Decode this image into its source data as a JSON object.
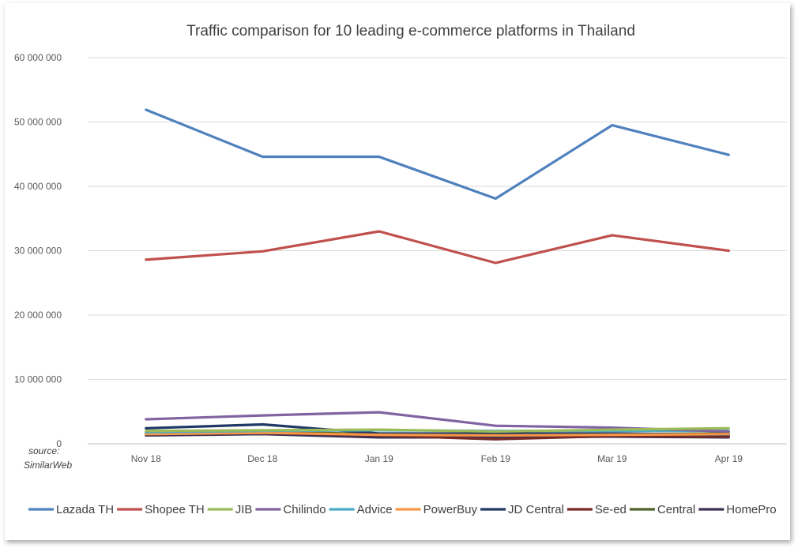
{
  "chart_data": {
    "type": "line",
    "title": "Traffic comparison for 10 leading e-commerce platforms in Thailand",
    "xlabel": "",
    "ylabel": "",
    "categories": [
      "Nov 18",
      "Dec 18",
      "Jan 19",
      "Feb 19",
      "Mar 19",
      "Apr 19"
    ],
    "ylim": [
      0,
      60000000
    ],
    "yticks": [
      0,
      10000000,
      20000000,
      30000000,
      40000000,
      50000000,
      60000000
    ],
    "ytick_labels": [
      "0",
      "10 000 000",
      "20 000 000",
      "30 000 000",
      "40 000 000",
      "50 000 000",
      "60 000 000"
    ],
    "grid": true,
    "legend_position": "bottom",
    "series": [
      {
        "name": "Lazada TH",
        "color": "#4f81bd",
        "values": [
          51900000,
          44600000,
          44600000,
          38100000,
          49500000,
          44900000
        ]
      },
      {
        "name": "Shopee TH",
        "color": "#c0504d",
        "values": [
          28600000,
          29900000,
          33000000,
          28100000,
          32400000,
          30000000
        ]
      },
      {
        "name": "JIB",
        "color": "#9bbb59",
        "values": [
          2000000,
          2100000,
          2200000,
          1900000,
          2200000,
          2400000
        ]
      },
      {
        "name": "Chilindo",
        "color": "#8064a2",
        "values": [
          3800000,
          4400000,
          4900000,
          2800000,
          2500000,
          1900000
        ]
      },
      {
        "name": "Advice",
        "color": "#4bacc6",
        "values": [
          1800000,
          2000000,
          2100000,
          2000000,
          2000000,
          2000000
        ]
      },
      {
        "name": "PowerBuy",
        "color": "#f79646",
        "values": [
          1500000,
          1700000,
          1400000,
          1300000,
          1400000,
          1500000
        ]
      },
      {
        "name": "JD Central",
        "color": "#1f3864",
        "values": [
          2400000,
          3000000,
          1600000,
          1600000,
          1600000,
          1400000
        ]
      },
      {
        "name": "Se-ed",
        "color": "#772c2a",
        "values": [
          1600000,
          1700000,
          1300000,
          700000,
          1200000,
          1100000
        ]
      },
      {
        "name": "Central",
        "color": "#4f6228",
        "values": [
          1800000,
          1900000,
          1500000,
          1400000,
          1500000,
          1600000
        ]
      },
      {
        "name": "HomePro",
        "color": "#3f3151",
        "values": [
          1300000,
          1500000,
          1000000,
          1000000,
          1100000,
          1000000
        ]
      }
    ],
    "annotations": [
      "source:",
      "SimilarWeb"
    ]
  }
}
